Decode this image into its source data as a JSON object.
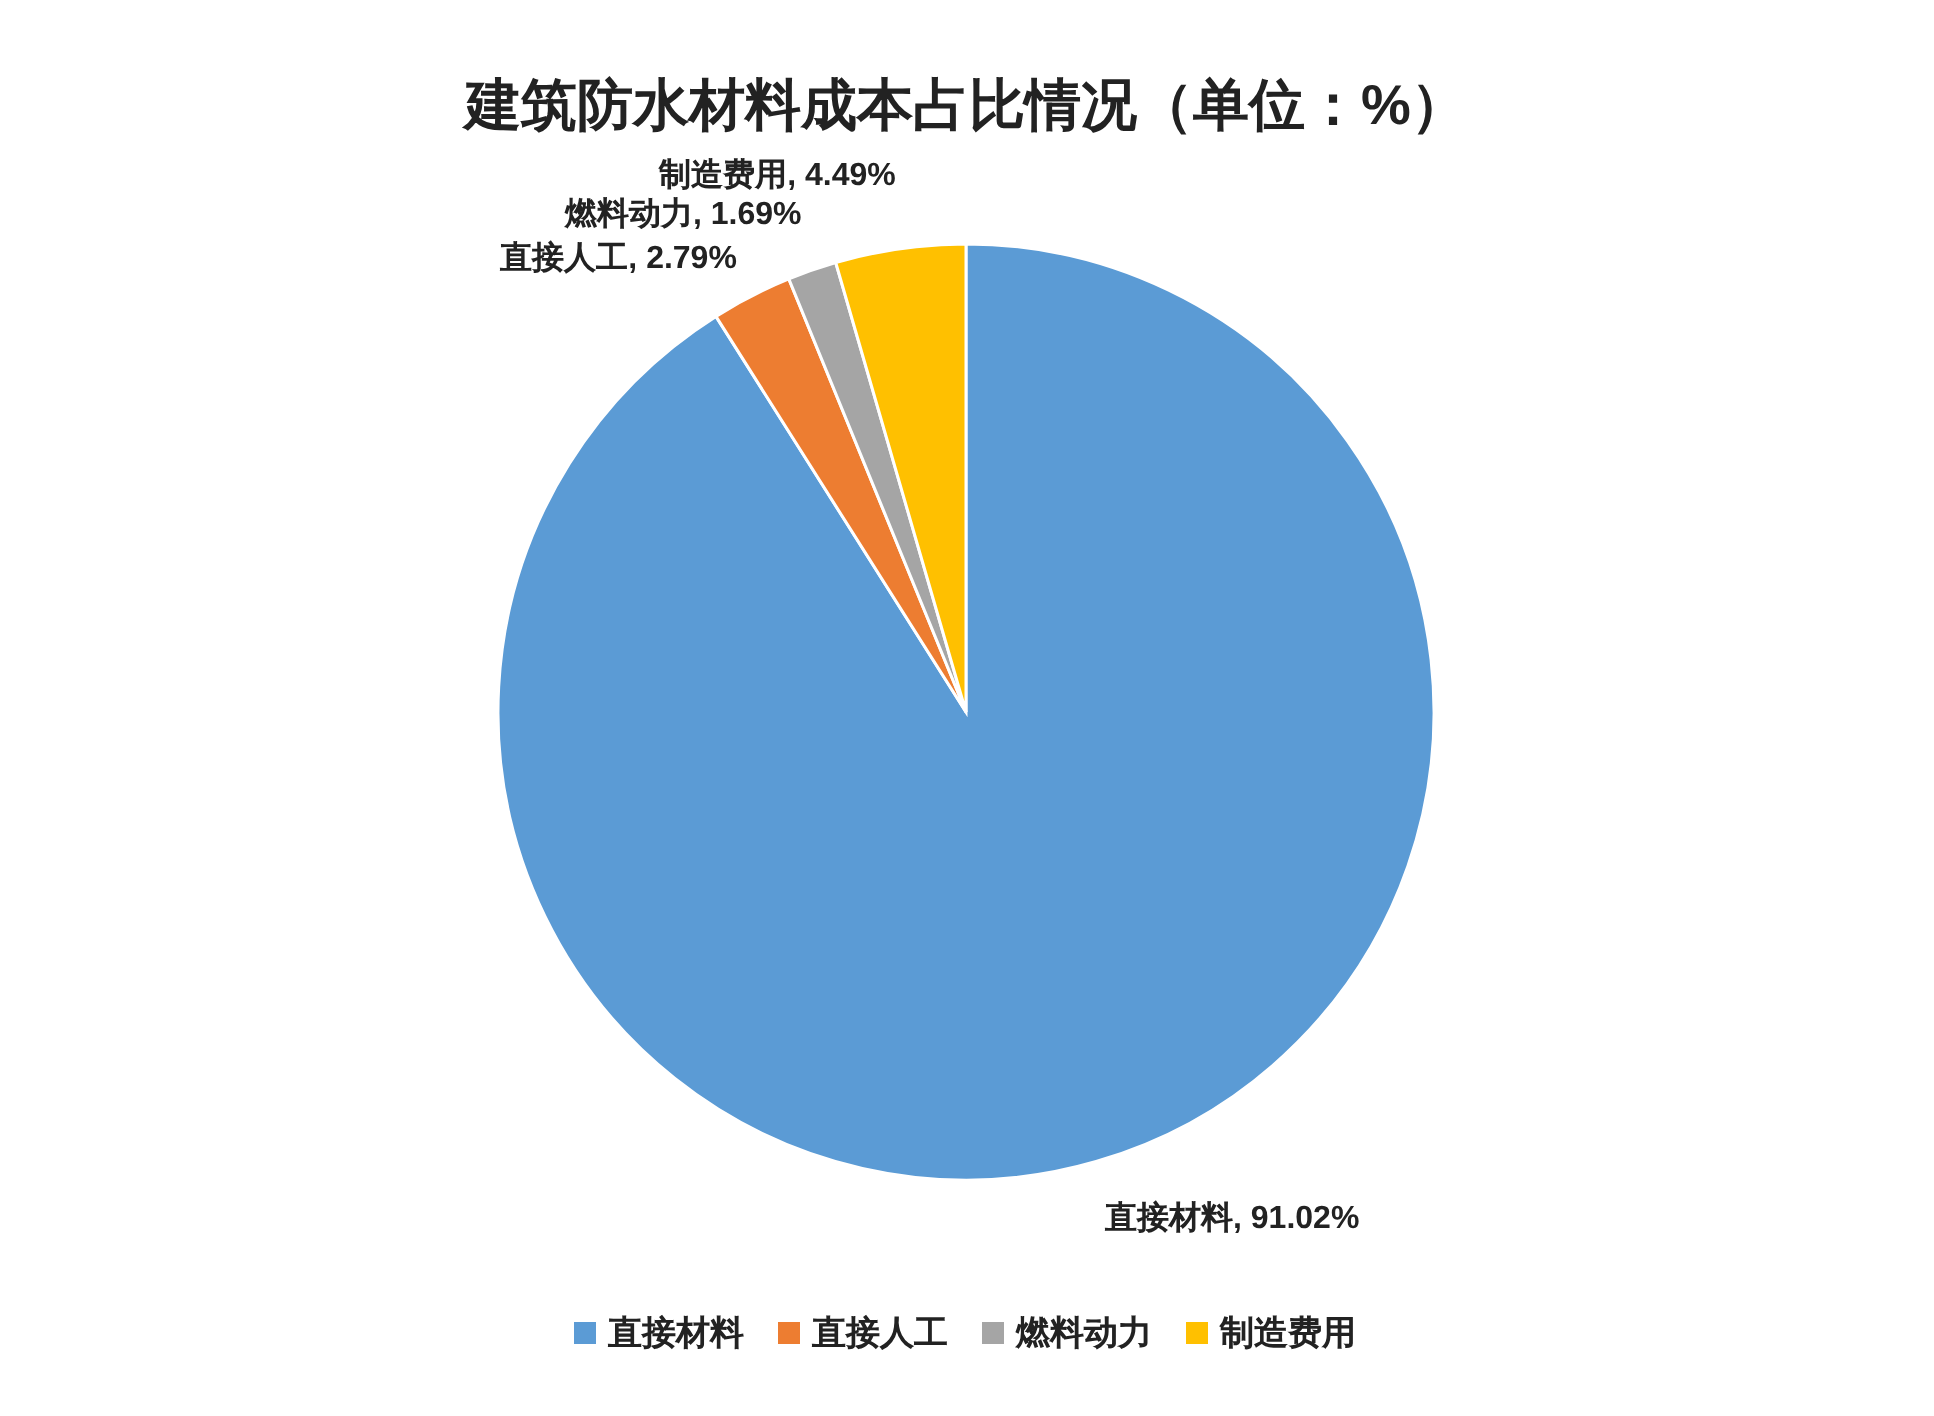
{
  "chart_data": {
    "type": "pie",
    "title": "建筑防水材料成本占比情况（单位：%）",
    "categories": [
      "直接材料",
      "直接人工",
      "燃料动力",
      "制造费用"
    ],
    "values": [
      91.02,
      2.79,
      1.69,
      4.49
    ],
    "colors": [
      "#5b9bd5",
      "#ed7d31",
      "#a5a5a5",
      "#ffc000"
    ],
    "value_labels": [
      "直接材料, 91.02%",
      "直接人工, 2.79%",
      "燃料动力, 1.69%",
      "制造费用, 4.49%"
    ],
    "legend": "bottom"
  }
}
